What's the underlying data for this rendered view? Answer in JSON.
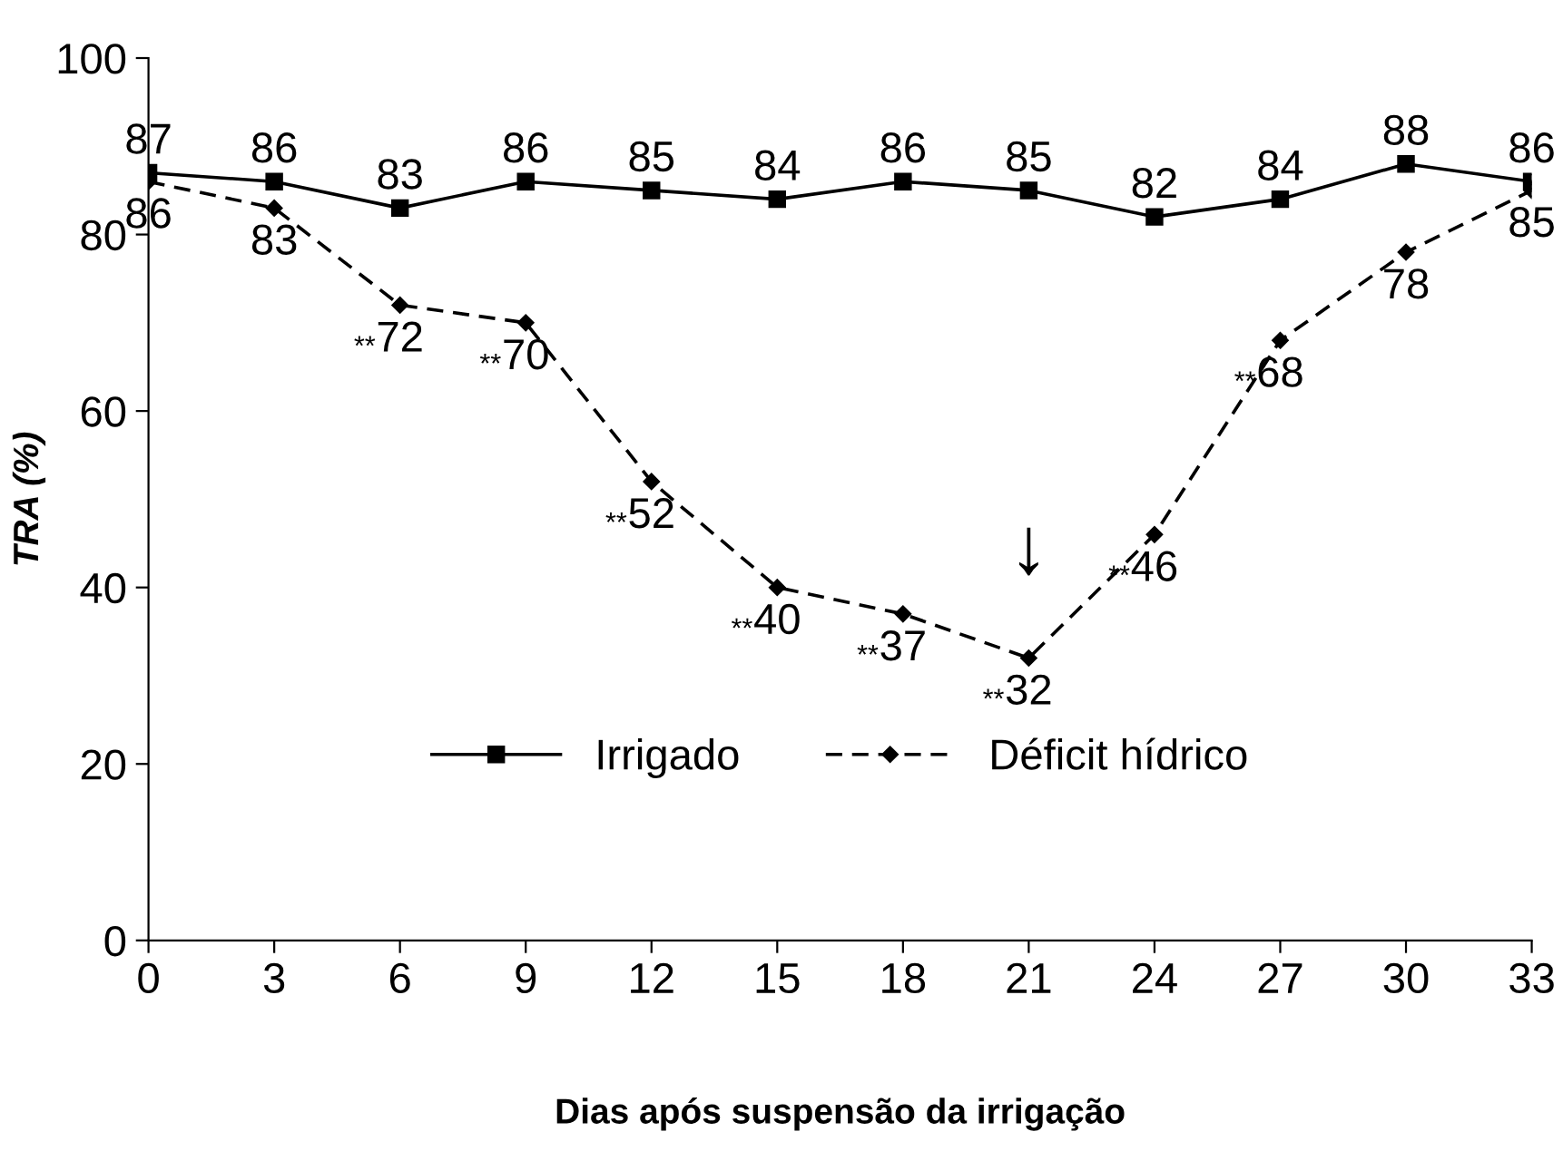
{
  "chart_data": {
    "type": "line",
    "xlabel": "Dias após suspensão da irrigação",
    "ylabel": "TRA (%)",
    "x": [
      0,
      3,
      6,
      9,
      12,
      15,
      18,
      21,
      24,
      27,
      30,
      33
    ],
    "series": [
      {
        "name": "Irrigado",
        "color": "#000000",
        "marker": "square",
        "line_style": "solid",
        "values": [
          87,
          86,
          83,
          86,
          85,
          84,
          86,
          85,
          82,
          84,
          88,
          86
        ]
      },
      {
        "name": "Déficit hídrico",
        "color": "#000000",
        "marker": "diamond",
        "line_style": "dashed",
        "values": [
          86,
          83,
          72,
          70,
          52,
          40,
          37,
          32,
          46,
          68,
          78,
          85
        ]
      }
    ],
    "xlim": [
      0,
      33
    ],
    "xticks": [
      0,
      3,
      6,
      9,
      12,
      15,
      18,
      21,
      24,
      27,
      30,
      33
    ],
    "ylim": [
      0,
      100
    ],
    "yticks": [
      0,
      20,
      40,
      60,
      80,
      100
    ],
    "grid": false,
    "legend": "bottom",
    "data_labels": true,
    "annotations": [
      {
        "text": "**",
        "x": 6,
        "y": 72
      },
      {
        "text": "**",
        "x": 9,
        "y": 70
      },
      {
        "text": "**",
        "x": 12,
        "y": 52
      },
      {
        "text": "**",
        "x": 15,
        "y": 40
      },
      {
        "text": "**",
        "x": 18,
        "y": 37
      },
      {
        "text": "**",
        "x": 21,
        "y": 32
      },
      {
        "text": "**",
        "x": 24,
        "y": 46
      },
      {
        "text": "**",
        "x": 27,
        "y": 68
      },
      {
        "text": "↓",
        "x": 21,
        "y": 32
      }
    ]
  }
}
